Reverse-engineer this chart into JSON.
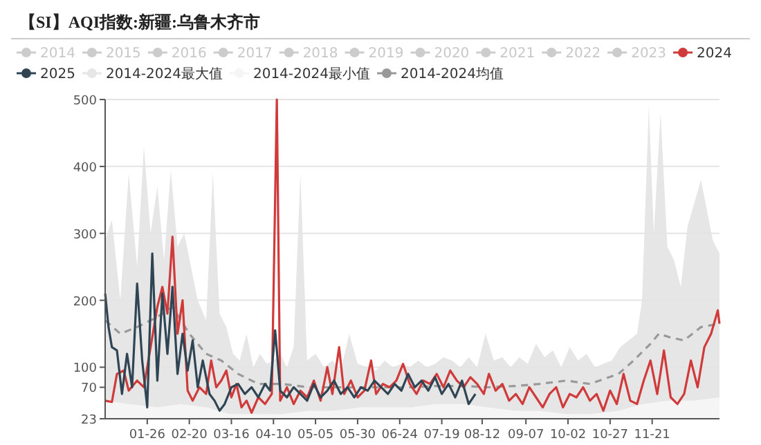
{
  "chart_data": {
    "type": "line",
    "title": "【SI】AQI指数:新疆:乌鲁木齐市",
    "xlim": [
      "--01-01",
      "--12-31"
    ],
    "xticks": [
      {
        "value": "--01-26",
        "label": "01-26"
      },
      {
        "value": "--02-20",
        "label": "02-20"
      },
      {
        "value": "--03-16",
        "label": "03-16"
      },
      {
        "value": "--04-10",
        "label": "04-10"
      },
      {
        "value": "--05-05",
        "label": "05-05"
      },
      {
        "value": "--05-30",
        "label": "05-30"
      },
      {
        "value": "--06-24",
        "label": "06-24"
      },
      {
        "value": "--07-19",
        "label": "07-19"
      },
      {
        "value": "--08-12",
        "label": "08-12"
      },
      {
        "value": "--09-07",
        "label": "09-07"
      },
      {
        "value": "--10-02",
        "label": "10-02"
      },
      {
        "value": "--10-27",
        "label": "10-27"
      },
      {
        "value": "--11-21",
        "label": "11-21"
      }
    ],
    "ylim": [
      23,
      500
    ],
    "yticks": [
      23,
      70,
      100,
      200,
      300,
      400,
      500
    ],
    "grid": "y",
    "legend": "top",
    "marker": "none",
    "series": [
      {
        "name": "2014",
        "color": "#cccccc"
      },
      {
        "name": "2015",
        "color": "#cccccc"
      },
      {
        "name": "2016",
        "color": "#cccccc"
      },
      {
        "name": "2017",
        "color": "#cccccc"
      },
      {
        "name": "2018",
        "color": "#cccccc"
      },
      {
        "name": "2019",
        "color": "#cccccc"
      },
      {
        "name": "2020",
        "color": "#cccccc"
      },
      {
        "name": "2021",
        "color": "#cccccc"
      },
      {
        "name": "2022",
        "color": "#cccccc"
      },
      {
        "name": "2023",
        "color": "#cccccc"
      },
      {
        "name": "2014-2024最大值",
        "type": "area",
        "color": "#e6e6e6",
        "x": [
          "--01-01",
          "--01-05",
          "--01-10",
          "--01-15",
          "--01-20",
          "--01-24",
          "--01-28",
          "--02-01",
          "--02-05",
          "--02-09",
          "--02-13",
          "--02-17",
          "--02-21",
          "--02-25",
          "--03-01",
          "--03-05",
          "--03-09",
          "--03-13",
          "--03-17",
          "--03-21",
          "--03-25",
          "--03-29",
          "--04-02",
          "--04-06",
          "--04-10",
          "--04-14",
          "--04-18",
          "--04-22",
          "--04-26",
          "--04-30",
          "--05-05",
          "--05-10",
          "--05-15",
          "--05-20",
          "--05-25",
          "--05-30",
          "--06-05",
          "--06-10",
          "--06-15",
          "--06-20",
          "--06-25",
          "--06-30",
          "--07-05",
          "--07-10",
          "--07-15",
          "--07-20",
          "--07-25",
          "--07-30",
          "--08-04",
          "--08-09",
          "--08-14",
          "--08-19",
          "--08-24",
          "--08-29",
          "--09-03",
          "--09-08",
          "--09-13",
          "--09-18",
          "--09-23",
          "--09-28",
          "--10-03",
          "--10-08",
          "--10-13",
          "--10-18",
          "--10-23",
          "--10-28",
          "--11-02",
          "--11-07",
          "--11-12",
          "--11-15",
          "--11-19",
          "--11-22",
          "--11-26",
          "--11-30",
          "--12-04",
          "--12-08",
          "--12-12",
          "--12-20",
          "--12-27",
          "--12-31"
        ],
        "values": [
          290,
          320,
          200,
          390,
          250,
          430,
          300,
          370,
          260,
          395,
          280,
          300,
          250,
          200,
          170,
          390,
          180,
          160,
          120,
          110,
          150,
          100,
          120,
          105,
          110,
          120,
          100,
          130,
          390,
          110,
          120,
          100,
          110,
          95,
          150,
          105,
          100,
          95,
          110,
          100,
          105,
          100,
          110,
          100,
          105,
          115,
          110,
          100,
          115,
          100,
          150,
          110,
          115,
          100,
          115,
          105,
          135,
          115,
          125,
          100,
          130,
          110,
          120,
          100,
          105,
          110,
          130,
          140,
          150,
          200,
          490,
          300,
          480,
          280,
          260,
          220,
          310,
          380,
          290,
          270
        ]
      },
      {
        "name": "2014-2024最小值",
        "type": "area",
        "color": "#f5f5f5",
        "x": [
          "--01-01",
          "--01-15",
          "--02-01",
          "--02-15",
          "--03-01",
          "--03-15",
          "--04-01",
          "--04-15",
          "--05-01",
          "--05-15",
          "--06-01",
          "--06-15",
          "--07-01",
          "--07-15",
          "--08-01",
          "--08-15",
          "--09-01",
          "--09-15",
          "--10-01",
          "--10-15",
          "--11-01",
          "--11-15",
          "--12-01",
          "--12-15",
          "--12-31"
        ],
        "values": [
          50,
          45,
          40,
          45,
          40,
          30,
          30,
          30,
          35,
          35,
          40,
          40,
          40,
          45,
          45,
          40,
          35,
          35,
          30,
          30,
          35,
          45,
          50,
          50,
          55
        ]
      },
      {
        "name": "2014-2024均值",
        "color": "#999999",
        "line_style": "dashed",
        "x": [
          "--01-01",
          "--01-10",
          "--01-20",
          "--02-01",
          "--02-10",
          "--02-20",
          "--03-01",
          "--03-10",
          "--03-20",
          "--04-01",
          "--04-15",
          "--05-01",
          "--05-15",
          "--06-01",
          "--06-15",
          "--07-01",
          "--07-15",
          "--08-01",
          "--08-15",
          "--09-01",
          "--09-15",
          "--10-01",
          "--10-15",
          "--11-01",
          "--11-10",
          "--11-20",
          "--11-25",
          "--12-01",
          "--12-10",
          "--12-20",
          "--12-31"
        ],
        "values": [
          170,
          150,
          160,
          175,
          190,
          150,
          120,
          110,
          90,
          75,
          75,
          70,
          70,
          70,
          70,
          70,
          72,
          72,
          70,
          72,
          75,
          80,
          75,
          90,
          110,
          135,
          150,
          145,
          140,
          160,
          165
        ]
      },
      {
        "name": "2024",
        "color": "#d03a3a",
        "x": [
          "--01-01",
          "--01-05",
          "--01-08",
          "--01-12",
          "--01-15",
          "--01-20",
          "--01-24",
          "--01-28",
          "--02-01",
          "--02-04",
          "--02-07",
          "--02-10",
          "--02-13",
          "--02-16",
          "--02-19",
          "--02-22",
          "--02-26",
          "--03-01",
          "--03-04",
          "--03-07",
          "--03-10",
          "--03-13",
          "--03-16",
          "--03-19",
          "--03-22",
          "--03-25",
          "--03-28",
          "--04-01",
          "--04-05",
          "--04-09",
          "--04-12",
          "--04-14",
          "--04-18",
          "--04-22",
          "--04-26",
          "--04-30",
          "--05-04",
          "--05-08",
          "--05-12",
          "--05-15",
          "--05-19",
          "--05-22",
          "--05-26",
          "--05-30",
          "--06-03",
          "--06-07",
          "--06-10",
          "--06-14",
          "--06-18",
          "--06-22",
          "--06-26",
          "--06-30",
          "--07-04",
          "--07-08",
          "--07-12",
          "--07-16",
          "--07-20",
          "--07-24",
          "--07-28",
          "--08-01",
          "--08-05",
          "--08-09",
          "--08-13",
          "--08-16",
          "--08-20",
          "--08-24",
          "--08-28",
          "--09-01",
          "--09-05",
          "--09-09",
          "--09-13",
          "--09-17",
          "--09-21",
          "--09-25",
          "--09-29",
          "--10-03",
          "--10-07",
          "--10-11",
          "--10-15",
          "--10-19",
          "--10-23",
          "--10-27",
          "--10-31",
          "--11-04",
          "--11-08",
          "--11-12",
          "--11-16",
          "--11-20",
          "--11-24",
          "--11-28",
          "--12-02",
          "--12-06",
          "--12-10",
          "--12-14",
          "--12-18",
          "--12-22",
          "--12-26",
          "--12-30",
          "--12-31"
        ],
        "values": [
          50,
          48,
          90,
          95,
          65,
          80,
          70,
          130,
          190,
          220,
          180,
          295,
          150,
          200,
          65,
          50,
          70,
          60,
          110,
          70,
          80,
          95,
          55,
          75,
          40,
          50,
          32,
          55,
          45,
          60,
          500,
          50,
          70,
          45,
          65,
          55,
          80,
          50,
          100,
          60,
          130,
          60,
          80,
          55,
          65,
          110,
          60,
          75,
          70,
          80,
          105,
          75,
          60,
          80,
          75,
          90,
          70,
          95,
          80,
          70,
          85,
          75,
          60,
          90,
          65,
          75,
          50,
          60,
          45,
          70,
          55,
          40,
          60,
          70,
          40,
          60,
          55,
          70,
          50,
          60,
          35,
          65,
          45,
          90,
          50,
          45,
          80,
          110,
          60,
          125,
          55,
          45,
          60,
          110,
          70,
          130,
          150,
          185,
          165
        ]
      },
      {
        "name": "2025",
        "color": "#2f4554",
        "x": [
          "--01-01",
          "--01-03",
          "--01-05",
          "--01-08",
          "--01-11",
          "--01-14",
          "--01-17",
          "--01-20",
          "--01-23",
          "--01-26",
          "--01-29",
          "--02-01",
          "--02-04",
          "--02-07",
          "--02-10",
          "--02-13",
          "--02-16",
          "--02-19",
          "--02-22",
          "--02-25",
          "--02-28",
          "--03-03",
          "--03-06",
          "--03-09",
          "--03-12",
          "--03-16",
          "--03-20",
          "--03-24",
          "--03-28",
          "--04-01",
          "--04-05",
          "--04-08",
          "--04-11",
          "--04-14",
          "--04-18",
          "--04-22",
          "--04-26",
          "--04-30",
          "--05-04",
          "--05-08",
          "--05-12",
          "--05-16",
          "--05-20",
          "--05-24",
          "--05-28",
          "--06-01",
          "--06-05",
          "--06-09",
          "--06-13",
          "--06-17",
          "--06-21",
          "--06-25",
          "--06-29",
          "--07-03",
          "--07-07",
          "--07-11",
          "--07-15",
          "--07-19",
          "--07-23",
          "--07-27",
          "--07-31",
          "--08-04",
          "--08-08"
        ],
        "values": [
          210,
          160,
          130,
          125,
          60,
          120,
          70,
          225,
          110,
          40,
          270,
          80,
          210,
          120,
          220,
          90,
          150,
          95,
          140,
          70,
          110,
          60,
          50,
          35,
          45,
          70,
          75,
          60,
          70,
          55,
          75,
          65,
          155,
          65,
          55,
          70,
          60,
          50,
          75,
          55,
          65,
          80,
          60,
          70,
          55,
          70,
          65,
          80,
          70,
          60,
          75,
          65,
          90,
          70,
          80,
          65,
          85,
          60,
          75,
          55,
          80,
          45,
          60
        ]
      }
    ]
  }
}
